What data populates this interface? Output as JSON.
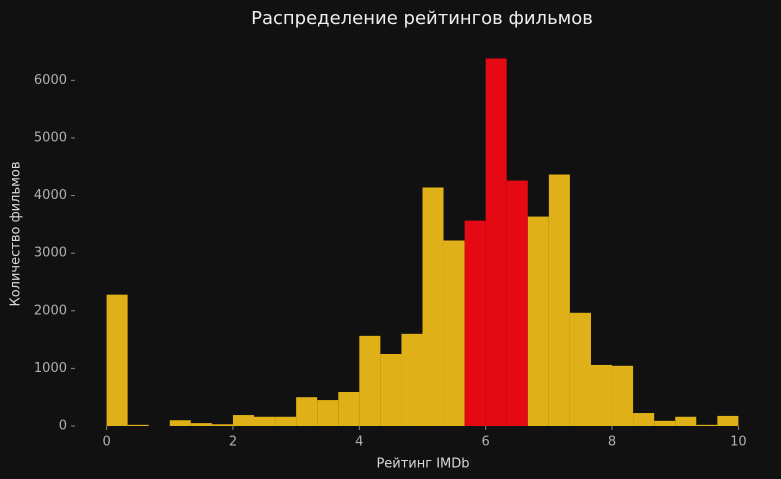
{
  "chart_data": {
    "type": "histogram",
    "title": "Распределение рейтингов фильмов",
    "x_label": "Рейтинг IMDb",
    "y_label": "Количество фильмов",
    "bins": [
      0,
      0.333,
      0.667,
      1,
      1.333,
      1.667,
      2,
      2.333,
      2.667,
      3,
      3.333,
      3.667,
      4,
      4.333,
      4.667,
      5,
      5.333,
      5.667,
      6,
      6.333,
      6.667,
      7,
      7.333,
      7.667,
      8,
      8.333,
      8.667,
      9,
      9.333,
      9.667,
      10
    ],
    "values": [
      2280,
      20,
      0,
      100,
      50,
      30,
      190,
      160,
      160,
      500,
      450,
      590,
      1565,
      1250,
      1600,
      4140,
      3220,
      3565,
      6380,
      4260,
      3635,
      4365,
      1965,
      1060,
      1045,
      225,
      90,
      160,
      20,
      175
    ],
    "colors": [
      "#dfb017",
      "#dfb017",
      "#dfb017",
      "#dfb017",
      "#dfb017",
      "#dfb017",
      "#dfb017",
      "#dfb017",
      "#dfb017",
      "#dfb017",
      "#dfb017",
      "#dfb017",
      "#dfb017",
      "#dfb017",
      "#dfb017",
      "#dfb017",
      "#dfb017",
      "#e50914",
      "#e50914",
      "#e50914",
      "#dfb017",
      "#dfb017",
      "#dfb017",
      "#dfb017",
      "#dfb017",
      "#dfb017",
      "#dfb017",
      "#dfb017",
      "#dfb017",
      "#dfb017"
    ],
    "xlim": [
      -0.5,
      10.5
    ],
    "xticks": [
      0,
      2,
      4,
      6,
      8,
      10
    ],
    "ylim": [
      0,
      6700
    ],
    "yticks": [
      0,
      1000,
      2000,
      3000,
      4000,
      5000,
      6000
    ],
    "grid": false
  }
}
